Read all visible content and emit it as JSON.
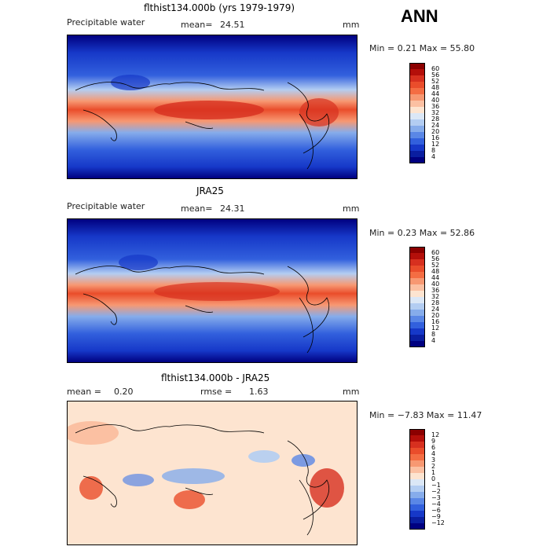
{
  "season": "ANN",
  "panels": [
    {
      "title": "flthist134.000b (yrs 1979-1979)",
      "field": "Precipitable water",
      "stat1_label": "mean=",
      "stat1_value": "24.51",
      "stat2_label": "",
      "stat2_value": "",
      "units": "mm",
      "minmax": "Min =    0.21  Max =   55.80",
      "scale": "precip",
      "colorbar_labels": [
        "60",
        "56",
        "52",
        "48",
        "44",
        "40",
        "36",
        "32",
        "28",
        "24",
        "20",
        "16",
        "12",
        "8",
        "4"
      ]
    },
    {
      "title": "JRA25",
      "field": "Precipitable water",
      "stat1_label": "mean=",
      "stat1_value": "24.31",
      "stat2_label": "",
      "stat2_value": "",
      "units": "mm",
      "minmax": "Min =    0.23  Max =   52.86",
      "scale": "precip",
      "colorbar_labels": [
        "60",
        "56",
        "52",
        "48",
        "44",
        "40",
        "36",
        "32",
        "28",
        "24",
        "20",
        "16",
        "12",
        "8",
        "4"
      ]
    },
    {
      "title": "flthist134.000b - JRA25",
      "field": "",
      "stat1_label": "mean =",
      "stat1_value": "0.20",
      "stat2_label": "rmse =",
      "stat2_value": "1.63",
      "units": "mm",
      "minmax": "Min =  −7.83  Max =   11.47",
      "scale": "diff",
      "colorbar_labels": [
        "12",
        "9",
        "6",
        "4",
        "3",
        "2",
        "1",
        "0",
        "−1",
        "−2",
        "−3",
        "−4",
        "−6",
        "−9",
        "−12"
      ]
    }
  ],
  "colors": {
    "precip": [
      "#8b0000",
      "#b40f0a",
      "#d7301f",
      "#ea4d2b",
      "#f46d43",
      "#f79872",
      "#fbc0a2",
      "#fde4d0",
      "#dbe7f6",
      "#b3cdf2",
      "#86aceb",
      "#5a87e6",
      "#3260dd",
      "#1638c8",
      "#0a1ea0",
      "#000080"
    ],
    "diff": [
      "#8b0000",
      "#b40f0a",
      "#d7301f",
      "#ea4d2b",
      "#f46d43",
      "#f79872",
      "#fbc0a2",
      "#fde4d0",
      "#dbe7f6",
      "#b3cdf2",
      "#86aceb",
      "#5a87e6",
      "#3260dd",
      "#1638c8",
      "#0a1ea0",
      "#000080"
    ]
  }
}
